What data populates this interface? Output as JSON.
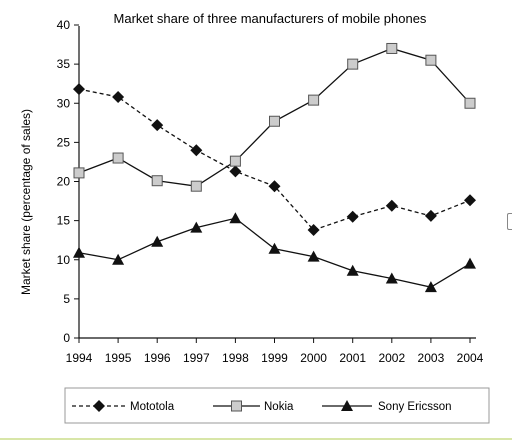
{
  "chart_data": {
    "type": "line",
    "title": "Market share of three manufacturers of mobile phones",
    "xlabel": "",
    "ylabel": "Market share (percentage of sales)",
    "x": [
      1994,
      1995,
      1996,
      1997,
      1998,
      1999,
      2000,
      2001,
      2002,
      2003,
      2004
    ],
    "xticks": [
      "1994",
      "1995",
      "1996",
      "1997",
      "1998",
      "1999",
      "2000",
      "2001",
      "2002",
      "2003",
      "2004"
    ],
    "yticks": [
      "0",
      "5",
      "10",
      "15",
      "20",
      "25",
      "30",
      "35",
      "40"
    ],
    "ylim": [
      0,
      40
    ],
    "grid": false,
    "legend": "bottom",
    "series": [
      {
        "name": "Mototola",
        "marker": "diamond",
        "dash": "dashed",
        "values": [
          31.8,
          30.8,
          27.2,
          24.0,
          21.3,
          19.4,
          13.8,
          15.5,
          16.9,
          15.6,
          17.6
        ]
      },
      {
        "name": "Nokia",
        "marker": "square",
        "dash": "solid",
        "values": [
          21.1,
          23.0,
          20.1,
          19.4,
          22.6,
          27.7,
          30.4,
          35.0,
          37.0,
          35.5,
          30.0
        ]
      },
      {
        "name": "Sony Ericsson",
        "marker": "triangle",
        "dash": "solid",
        "values": [
          10.9,
          10.0,
          12.3,
          14.1,
          15.3,
          11.4,
          10.4,
          8.6,
          7.6,
          6.5,
          9.5
        ]
      }
    ]
  },
  "colors": {
    "line": "#111111",
    "square_fill": "#cccccc",
    "accent_bottom": "#d8e6a8"
  }
}
